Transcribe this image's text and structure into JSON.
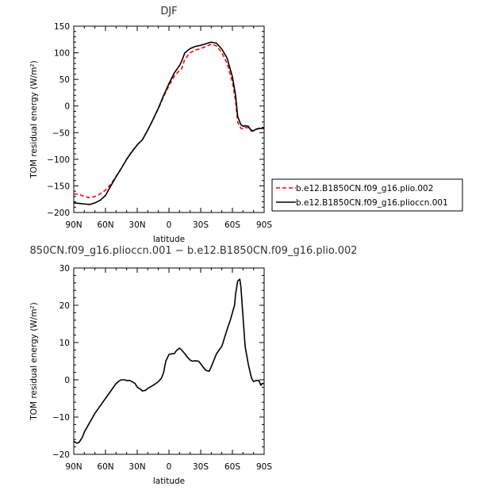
{
  "chart_data": [
    {
      "type": "line",
      "title": "DJF",
      "xlabel": "latitude",
      "ylabel": "TOM residual energy  (W/m²)",
      "xlim": [
        -90,
        90
      ],
      "ylim": [
        -200,
        150
      ],
      "xticks": [
        -90,
        -60,
        -30,
        0,
        30,
        60,
        90
      ],
      "xtick_labels": [
        "90N",
        "60N",
        "30N",
        "0",
        "30S",
        "60S",
        "90S"
      ],
      "yticks": [
        -200,
        -150,
        -100,
        -50,
        0,
        50,
        100,
        150
      ],
      "ytick_labels": [
        "−200",
        "−150",
        "−100",
        "−50",
        "0",
        "50",
        "100",
        "150"
      ],
      "legend_position": "right",
      "series": [
        {
          "name": "b.e12.B1850CN.f09_g16.plio.002",
          "color": "#ff0000",
          "dash": "dashed",
          "x": [
            -90,
            -85,
            -80,
            -75,
            -70,
            -65,
            -60,
            -55,
            -50,
            -45,
            -40,
            -35,
            -30,
            -25,
            -20,
            -15,
            -10,
            -5,
            0,
            5,
            10,
            12,
            15,
            20,
            25,
            30,
            35,
            40,
            45,
            50,
            55,
            60,
            63,
            65,
            68,
            70,
            72,
            75,
            78,
            80,
            83,
            85,
            88,
            90
          ],
          "y": [
            -165,
            -166,
            -170,
            -172,
            -170,
            -165,
            -158,
            -147,
            -132,
            -117,
            -100,
            -85,
            -73,
            -63,
            -45,
            -25,
            -5,
            18,
            38,
            56,
            67,
            70,
            88,
            100,
            105,
            108,
            112,
            116,
            113,
            100,
            80,
            45,
            10,
            -30,
            -42,
            -43,
            -40,
            -41,
            -45,
            -47,
            -44,
            -42,
            -43,
            -41
          ]
        },
        {
          "name": "b.e12.B1850CN.f09_g16.plioccn.001",
          "color": "#000000",
          "dash": "solid",
          "x": [
            -90,
            -85,
            -80,
            -75,
            -70,
            -65,
            -60,
            -55,
            -50,
            -45,
            -40,
            -35,
            -30,
            -25,
            -20,
            -15,
            -10,
            -5,
            0,
            5,
            10,
            12,
            15,
            20,
            25,
            30,
            35,
            40,
            45,
            50,
            55,
            60,
            63,
            65,
            68,
            70,
            72,
            75,
            78,
            80,
            83,
            85,
            88,
            90
          ],
          "y": [
            -182,
            -183,
            -184,
            -185,
            -182,
            -177,
            -168,
            -150,
            -133,
            -117,
            -100,
            -86,
            -73,
            -63,
            -45,
            -25,
            -4,
            20,
            42,
            62,
            76,
            84,
            100,
            108,
            112,
            114,
            117,
            120,
            118,
            107,
            90,
            55,
            20,
            -20,
            -35,
            -38,
            -37,
            -38,
            -47,
            -46,
            -43,
            -42,
            -42,
            -41
          ]
        }
      ]
    },
    {
      "type": "line",
      "title": "850CN.f09_g16.plioccn.001 − b.e12.B1850CN.f09_g16.plio.002",
      "xlabel": "latitude",
      "ylabel": "TOM residual energy  (W/m²)",
      "xlim": [
        -90,
        90
      ],
      "ylim": [
        -20,
        30
      ],
      "xticks": [
        -90,
        -60,
        -30,
        0,
        30,
        60,
        90
      ],
      "xtick_labels": [
        "90N",
        "60N",
        "30N",
        "0",
        "30S",
        "60S",
        "90S"
      ],
      "yticks": [
        -20,
        -10,
        0,
        10,
        20,
        30
      ],
      "ytick_labels": [
        "−20",
        "−10",
        "0",
        "10",
        "20",
        "30"
      ],
      "series": [
        {
          "color": "#000000",
          "x": [
            -90,
            -87,
            -85,
            -82,
            -80,
            -75,
            -70,
            -65,
            -60,
            -55,
            -50,
            -47,
            -45,
            -42,
            -40,
            -37,
            -35,
            -32,
            -30,
            -27,
            -25,
            -22,
            -20,
            -15,
            -10,
            -7,
            -5,
            -3,
            0,
            3,
            5,
            7,
            10,
            12,
            15,
            17,
            20,
            22,
            25,
            28,
            30,
            32,
            35,
            38,
            40,
            45,
            50,
            55,
            58,
            60,
            62,
            63,
            65,
            67,
            68,
            70,
            72,
            75,
            78,
            80,
            82,
            85,
            87,
            88,
            90
          ],
          "y": [
            -16.5,
            -17,
            -16.8,
            -15.5,
            -14,
            -11.5,
            -9,
            -7,
            -5,
            -3,
            -1,
            -0.3,
            0,
            0,
            -0.2,
            -0.2,
            -0.5,
            -1,
            -2,
            -2.5,
            -3,
            -2.8,
            -2.3,
            -1.5,
            -0.5,
            0.5,
            2,
            5,
            6.8,
            7,
            7,
            7.8,
            8.5,
            8,
            7,
            6.2,
            5.3,
            5,
            5.1,
            5,
            4.3,
            3.5,
            2.5,
            2.3,
            3.5,
            7,
            9,
            13.5,
            16,
            18,
            20,
            23,
            26.5,
            27,
            25,
            17,
            9,
            4.2,
            0.5,
            -0.5,
            -0.2,
            -0.2,
            -1.5,
            -1,
            -1
          ]
        }
      ]
    }
  ]
}
